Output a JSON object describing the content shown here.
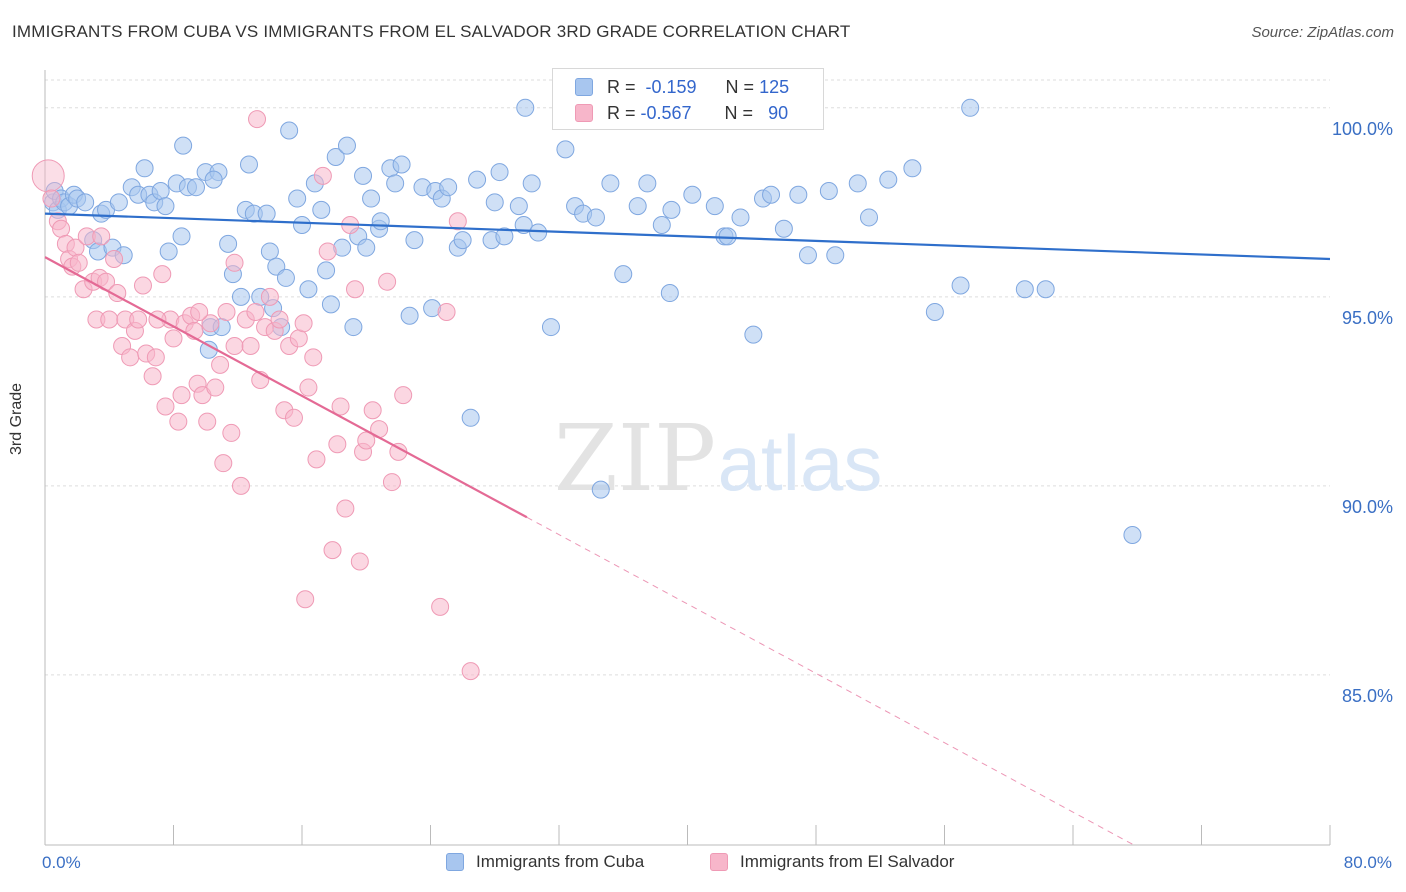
{
  "header": {
    "title": "IMMIGRANTS FROM CUBA VS IMMIGRANTS FROM EL SALVADOR 3RD GRADE CORRELATION CHART",
    "source": "Source: ZipAtlas.com"
  },
  "watermark": {
    "zip": "ZIP",
    "atlas": "atlas"
  },
  "stats": [
    {
      "r_label": "R =",
      "r_value": "-0.159",
      "n_label": "N =",
      "n_value": "125"
    },
    {
      "r_label": "R =",
      "r_value": "-0.567",
      "n_label": "N =",
      "n_value": "90"
    }
  ],
  "colors": {
    "cuba_fill": "#a8c6ef",
    "cuba_stroke": "#7fa7e0",
    "cuba_line": "#2f6fcb",
    "salvador_fill": "#f7b6ca",
    "salvador_stroke": "#ef9ab5",
    "salvador_line": "#e46a95",
    "tick_label": "#3a6fc4",
    "grid": "#dddddd"
  },
  "chart_data": {
    "type": "scatter",
    "title": "IMMIGRANTS FROM CUBA VS IMMIGRANTS FROM EL SALVADOR 3RD GRADE CORRELATION CHART",
    "xlabel": "",
    "ylabel": "3rd Grade",
    "xlim": [
      0,
      80
    ],
    "ylim": [
      80.5,
      101.0
    ],
    "x_tick_labels": [
      "0.0%",
      "80.0%"
    ],
    "y_ticks": [
      85,
      90,
      95,
      100
    ],
    "y_tick_labels": [
      "85.0%",
      "90.0%",
      "95.0%",
      "100.0%"
    ],
    "grid": "horizontal dashed",
    "legend_position": "bottom",
    "series": [
      {
        "name": "Immigrants from Cuba",
        "r": -0.159,
        "n": 125,
        "trend": {
          "x": [
            0,
            80
          ],
          "y": [
            97.2,
            96.0
          ],
          "dashed_from": null
        },
        "points": [
          [
            0.5,
            97.5
          ],
          [
            0.6,
            97.8
          ],
          [
            0.8,
            97.3
          ],
          [
            1.0,
            97.6
          ],
          [
            1.2,
            97.5
          ],
          [
            1.5,
            97.4
          ],
          [
            1.8,
            97.7
          ],
          [
            2.0,
            97.6
          ],
          [
            2.5,
            97.5
          ],
          [
            3.0,
            96.5
          ],
          [
            3.3,
            96.2
          ],
          [
            3.5,
            97.2
          ],
          [
            3.8,
            97.3
          ],
          [
            4.2,
            96.3
          ],
          [
            4.6,
            97.5
          ],
          [
            4.9,
            96.1
          ],
          [
            5.4,
            97.9
          ],
          [
            5.8,
            97.7
          ],
          [
            6.2,
            98.4
          ],
          [
            6.5,
            97.7
          ],
          [
            6.8,
            97.5
          ],
          [
            7.2,
            97.8
          ],
          [
            7.5,
            97.4
          ],
          [
            7.7,
            96.2
          ],
          [
            8.2,
            98.0
          ],
          [
            8.5,
            96.6
          ],
          [
            8.6,
            99.0
          ],
          [
            8.9,
            97.9
          ],
          [
            9.4,
            97.9
          ],
          [
            10.0,
            98.3
          ],
          [
            10.2,
            93.6
          ],
          [
            10.3,
            94.2
          ],
          [
            10.8,
            98.3
          ],
          [
            11.0,
            94.2
          ],
          [
            11.4,
            96.4
          ],
          [
            11.7,
            95.6
          ],
          [
            12.2,
            95.0
          ],
          [
            12.5,
            97.3
          ],
          [
            12.7,
            98.5
          ],
          [
            13.0,
            97.2
          ],
          [
            13.4,
            95.0
          ],
          [
            13.8,
            97.2
          ],
          [
            14.0,
            96.2
          ],
          [
            14.2,
            94.7
          ],
          [
            14.4,
            95.8
          ],
          [
            14.7,
            94.2
          ],
          [
            15.0,
            95.5
          ],
          [
            15.2,
            99.4
          ],
          [
            15.7,
            97.6
          ],
          [
            16.0,
            96.9
          ],
          [
            16.4,
            95.2
          ],
          [
            16.8,
            98.0
          ],
          [
            17.2,
            97.3
          ],
          [
            17.5,
            95.7
          ],
          [
            17.8,
            94.8
          ],
          [
            18.1,
            98.7
          ],
          [
            18.5,
            96.3
          ],
          [
            18.8,
            99.0
          ],
          [
            19.2,
            94.2
          ],
          [
            19.5,
            96.6
          ],
          [
            19.8,
            98.2
          ],
          [
            20.0,
            96.3
          ],
          [
            20.3,
            97.6
          ],
          [
            20.8,
            96.8
          ],
          [
            20.9,
            97.0
          ],
          [
            21.5,
            98.4
          ],
          [
            21.8,
            98.0
          ],
          [
            22.2,
            98.5
          ],
          [
            22.7,
            94.5
          ],
          [
            23.0,
            96.5
          ],
          [
            23.5,
            97.9
          ],
          [
            24.1,
            94.7
          ],
          [
            24.3,
            97.8
          ],
          [
            24.7,
            97.6
          ],
          [
            25.1,
            97.9
          ],
          [
            25.7,
            96.3
          ],
          [
            26.0,
            96.5
          ],
          [
            26.5,
            91.8
          ],
          [
            26.9,
            98.1
          ],
          [
            27.8,
            96.5
          ],
          [
            28.0,
            97.5
          ],
          [
            28.3,
            98.3
          ],
          [
            28.6,
            96.6
          ],
          [
            29.5,
            97.4
          ],
          [
            29.8,
            96.9
          ],
          [
            30.3,
            98.0
          ],
          [
            30.7,
            96.7
          ],
          [
            31.5,
            94.2
          ],
          [
            33.0,
            97.4
          ],
          [
            33.5,
            97.2
          ],
          [
            34.3,
            97.1
          ],
          [
            34.6,
            89.9
          ],
          [
            35.2,
            98.0
          ],
          [
            36.0,
            95.6
          ],
          [
            36.9,
            97.4
          ],
          [
            37.5,
            98.0
          ],
          [
            38.4,
            96.9
          ],
          [
            39.0,
            97.3
          ],
          [
            38.9,
            95.1
          ],
          [
            40.3,
            97.7
          ],
          [
            41.7,
            97.4
          ],
          [
            42.3,
            96.6
          ],
          [
            42.5,
            96.6
          ],
          [
            43.3,
            97.1
          ],
          [
            44.1,
            94.0
          ],
          [
            44.7,
            97.6
          ],
          [
            45.2,
            97.7
          ],
          [
            46.0,
            96.8
          ],
          [
            46.9,
            97.7
          ],
          [
            47.5,
            96.1
          ],
          [
            48.8,
            97.8
          ],
          [
            49.2,
            96.1
          ],
          [
            50.6,
            98.0
          ],
          [
            51.3,
            97.1
          ],
          [
            52.5,
            98.1
          ],
          [
            54.0,
            98.4
          ],
          [
            55.4,
            94.6
          ],
          [
            57.0,
            95.3
          ],
          [
            61.0,
            95.2
          ],
          [
            62.3,
            95.2
          ],
          [
            67.7,
            88.7
          ],
          [
            29.9,
            100.0
          ],
          [
            57.6,
            100.0
          ],
          [
            32.4,
            98.9
          ],
          [
            10.5,
            98.1
          ]
        ]
      },
      {
        "name": "Immigrants from El Salvador",
        "r": -0.567,
        "n": 90,
        "trend": {
          "x": [
            0,
            80
          ],
          "y": [
            96.05,
            77.7
          ],
          "dashed_from": 30.0
        },
        "points": [
          [
            0.2,
            98.2
          ],
          [
            0.4,
            97.6
          ],
          [
            0.8,
            97.0
          ],
          [
            1.0,
            96.8
          ],
          [
            1.3,
            96.4
          ],
          [
            1.5,
            96.0
          ],
          [
            1.7,
            95.8
          ],
          [
            1.9,
            96.3
          ],
          [
            2.1,
            95.9
          ],
          [
            2.4,
            95.2
          ],
          [
            2.6,
            96.6
          ],
          [
            3.0,
            95.4
          ],
          [
            3.2,
            94.4
          ],
          [
            3.4,
            95.5
          ],
          [
            3.8,
            95.4
          ],
          [
            4.0,
            94.4
          ],
          [
            4.3,
            96.0
          ],
          [
            4.5,
            95.1
          ],
          [
            4.8,
            93.7
          ],
          [
            5.0,
            94.4
          ],
          [
            5.3,
            93.4
          ],
          [
            5.6,
            94.1
          ],
          [
            5.8,
            94.4
          ],
          [
            6.1,
            95.3
          ],
          [
            6.3,
            93.5
          ],
          [
            6.7,
            92.9
          ],
          [
            6.9,
            93.4
          ],
          [
            7.3,
            95.6
          ],
          [
            7.5,
            92.1
          ],
          [
            7.8,
            94.4
          ],
          [
            8.0,
            93.9
          ],
          [
            8.3,
            91.7
          ],
          [
            8.5,
            92.4
          ],
          [
            8.7,
            94.3
          ],
          [
            9.1,
            94.5
          ],
          [
            9.3,
            94.1
          ],
          [
            9.5,
            92.7
          ],
          [
            9.8,
            92.4
          ],
          [
            10.1,
            91.7
          ],
          [
            10.3,
            94.3
          ],
          [
            10.6,
            92.6
          ],
          [
            10.9,
            93.2
          ],
          [
            11.1,
            90.6
          ],
          [
            11.3,
            94.6
          ],
          [
            11.6,
            91.4
          ],
          [
            11.8,
            93.7
          ],
          [
            12.2,
            90.0
          ],
          [
            12.5,
            94.4
          ],
          [
            12.8,
            93.7
          ],
          [
            13.1,
            94.6
          ],
          [
            13.4,
            92.8
          ],
          [
            13.7,
            94.2
          ],
          [
            14.0,
            95.0
          ],
          [
            14.3,
            94.1
          ],
          [
            14.6,
            94.4
          ],
          [
            14.9,
            92.0
          ],
          [
            15.2,
            93.7
          ],
          [
            15.5,
            91.8
          ],
          [
            15.8,
            93.9
          ],
          [
            16.1,
            94.3
          ],
          [
            16.4,
            92.6
          ],
          [
            16.7,
            93.4
          ],
          [
            16.9,
            90.7
          ],
          [
            17.3,
            98.2
          ],
          [
            17.6,
            96.2
          ],
          [
            17.9,
            88.3
          ],
          [
            18.2,
            91.1
          ],
          [
            18.4,
            92.1
          ],
          [
            18.7,
            89.4
          ],
          [
            19.0,
            96.9
          ],
          [
            19.3,
            95.2
          ],
          [
            19.6,
            88.0
          ],
          [
            19.8,
            90.9
          ],
          [
            20.0,
            91.2
          ],
          [
            20.4,
            92.0
          ],
          [
            20.8,
            91.5
          ],
          [
            21.3,
            95.4
          ],
          [
            21.6,
            90.1
          ],
          [
            22.0,
            90.9
          ],
          [
            22.3,
            92.4
          ],
          [
            24.6,
            86.8
          ],
          [
            25.0,
            94.6
          ],
          [
            25.7,
            97.0
          ],
          [
            26.5,
            85.1
          ],
          [
            16.2,
            87.0
          ],
          [
            13.2,
            99.7
          ],
          [
            11.8,
            95.9
          ],
          [
            3.5,
            96.6
          ],
          [
            7.0,
            94.4
          ],
          [
            9.6,
            94.6
          ]
        ]
      }
    ]
  },
  "legend": {
    "items": [
      {
        "label": "Immigrants from Cuba"
      },
      {
        "label": "Immigrants from El Salvador"
      }
    ]
  },
  "x_axis": {
    "min_label": "0.0%",
    "max_label": "80.0%"
  }
}
